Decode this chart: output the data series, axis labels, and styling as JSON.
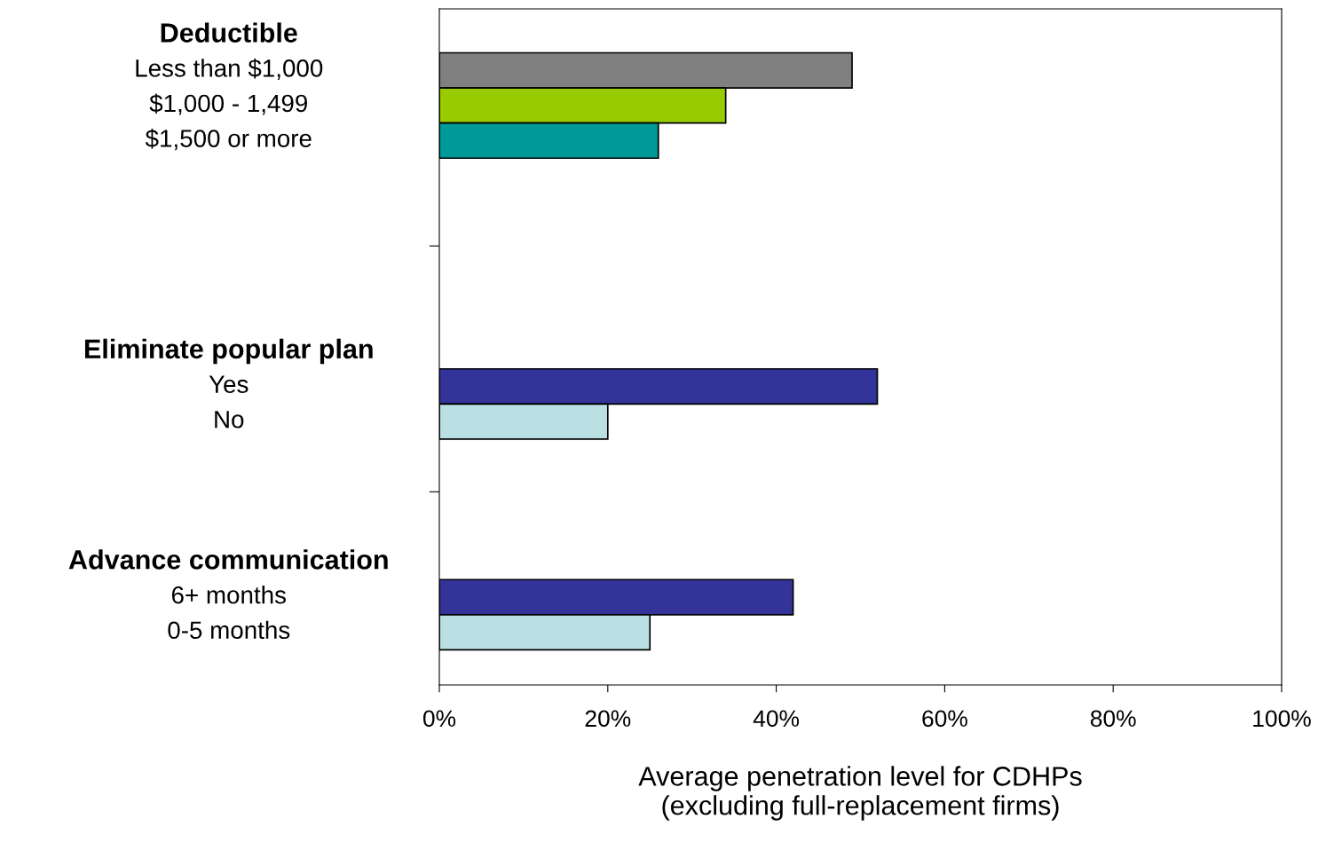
{
  "chart_data": {
    "type": "bar",
    "orientation": "horizontal",
    "categories": [
      "Deductible",
      "Less than $1,000",
      "$1,000 - 1,499",
      "$1,500 or more",
      null,
      null,
      null,
      null,
      null,
      "Eliminate popular plan",
      "Yes",
      "No",
      null,
      null,
      null,
      "Advance communication",
      "6+ months",
      "0-5 months",
      null
    ],
    "values": [
      null,
      49,
      34,
      26,
      null,
      null,
      null,
      null,
      null,
      null,
      52,
      20,
      null,
      null,
      null,
      null,
      42,
      25,
      null
    ],
    "colors": [
      null,
      "#808080",
      "#99cc00",
      "#009999",
      null,
      null,
      null,
      null,
      null,
      null,
      "#333399",
      "#bbe0e3",
      null,
      null,
      null,
      null,
      "#333399",
      "#bbe0e3",
      null
    ],
    "xlim": [
      0,
      100
    ],
    "xticks": [
      {
        "value": 0,
        "label": "0%"
      },
      {
        "value": 20,
        "label": "20%"
      },
      {
        "value": 40,
        "label": "40%"
      },
      {
        "value": 60,
        "label": "60%"
      },
      {
        "value": 80,
        "label": "80%"
      },
      {
        "value": 100,
        "label": "100%"
      }
    ],
    "xlabel": "Average penetration level for CDHPs\n(excluding full-replacement firms)",
    "grid": false,
    "legend": false
  }
}
